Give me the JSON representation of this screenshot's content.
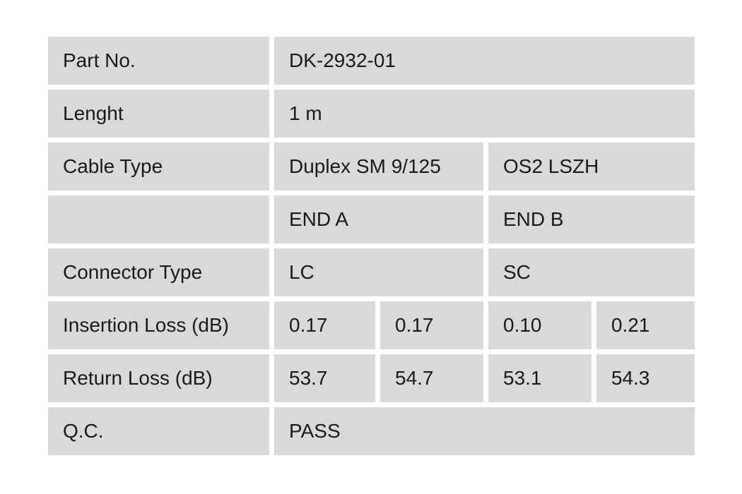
{
  "colors": {
    "page_bg": "#ffffff",
    "cell_bg": "#d9d9d9",
    "text": "#1a1a1a"
  },
  "table": {
    "rows": [
      {
        "label": "Part No.",
        "value": "DK-2932-01"
      },
      {
        "label": "Lenght",
        "value": "1 m"
      },
      {
        "label": "Cable Type",
        "end_a": "Duplex SM 9/125",
        "end_b": "OS2 LSZH"
      },
      {
        "label": "",
        "end_a": "END A",
        "end_b": "END B"
      },
      {
        "label": "Connector Type",
        "end_a": "LC",
        "end_b": "SC"
      },
      {
        "label": "Insertion Loss (dB)",
        "values": [
          "0.17",
          "0.17",
          "0.10",
          "0.21"
        ]
      },
      {
        "label": "Return Loss (dB)",
        "values": [
          "53.7",
          "54.7",
          "53.1",
          "54.3"
        ]
      },
      {
        "label": "Q.C.",
        "value": "PASS"
      }
    ]
  }
}
